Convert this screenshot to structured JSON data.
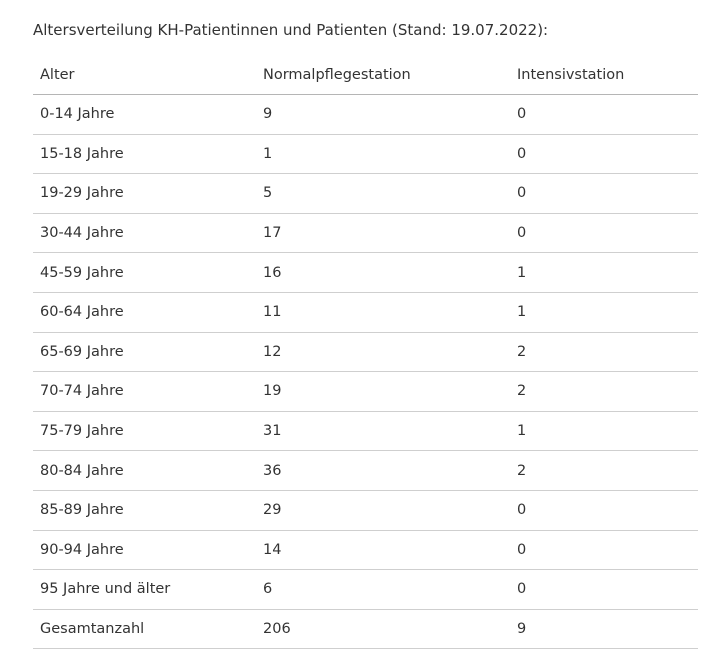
{
  "caption": "Altersverteilung KH-Patientinnen und Patienten (Stand: 19.07.2022):",
  "table": {
    "headers": [
      "Alter",
      "Normalpflegestation",
      "Intensivstation"
    ],
    "rows": [
      [
        "0-14 Jahre",
        "9",
        "0"
      ],
      [
        "15-18 Jahre",
        "1",
        "0"
      ],
      [
        "19-29 Jahre",
        "5",
        "0"
      ],
      [
        "30-44 Jahre",
        "17",
        "0"
      ],
      [
        "45-59 Jahre",
        "16",
        "1"
      ],
      [
        "60-64 Jahre",
        "11",
        "1"
      ],
      [
        "65-69 Jahre",
        "12",
        "2"
      ],
      [
        "70-74 Jahre",
        "19",
        "2"
      ],
      [
        "75-79 Jahre",
        "31",
        "1"
      ],
      [
        "80-84 Jahre",
        "36",
        "2"
      ],
      [
        "85-89 Jahre",
        "29",
        "0"
      ],
      [
        "90-94 Jahre",
        "14",
        "0"
      ],
      [
        "95 Jahre und älter",
        "6",
        "0"
      ],
      [
        "Gesamtanzahl",
        "206",
        "9"
      ]
    ]
  }
}
